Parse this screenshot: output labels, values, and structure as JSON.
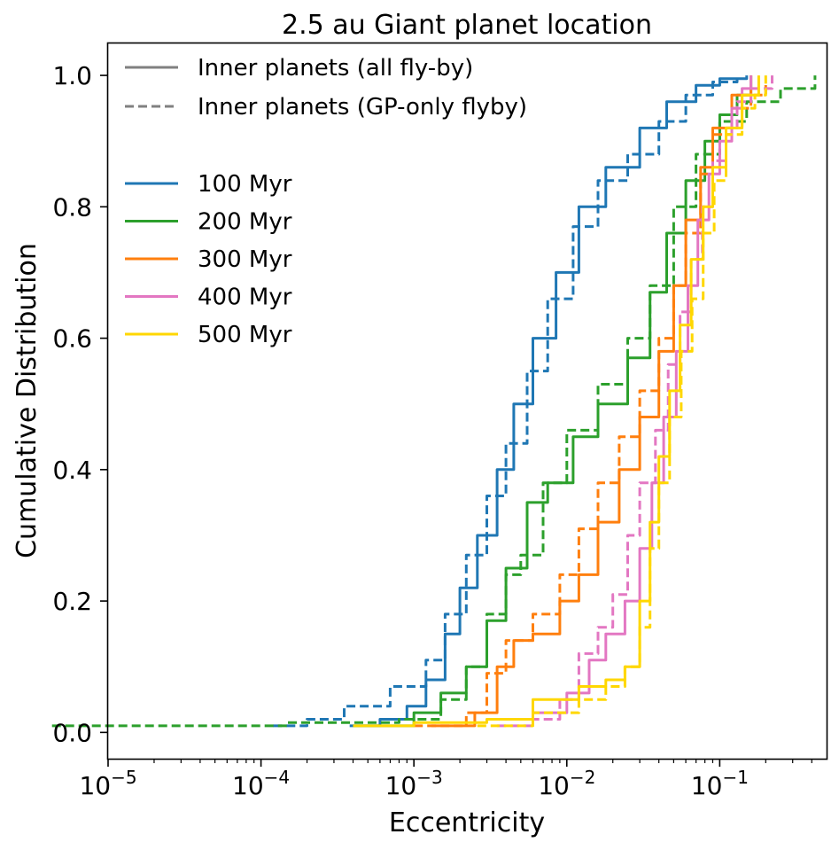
{
  "chart_data": {
    "type": "line",
    "title": "2.5 au Giant planet location",
    "xlabel": "Eccentricity",
    "ylabel": "Cumulative Distribution",
    "xscale": "log",
    "xlim": [
      1e-05,
      0.5
    ],
    "ylim": [
      -0.04,
      1.05
    ],
    "xticks": [
      {
        "value": 1e-05,
        "base": "10",
        "exp": "−5"
      },
      {
        "value": 0.0001,
        "base": "10",
        "exp": "−4"
      },
      {
        "value": 0.001,
        "base": "10",
        "exp": "−3"
      },
      {
        "value": 0.01,
        "base": "10",
        "exp": "−2"
      },
      {
        "value": 0.1,
        "base": "10",
        "exp": "−1"
      }
    ],
    "yticks": [
      {
        "value": 0.0,
        "label": "0.0"
      },
      {
        "value": 0.2,
        "label": "0.2"
      },
      {
        "value": 0.4,
        "label": "0.4"
      },
      {
        "value": 0.6,
        "label": "0.6"
      },
      {
        "value": 0.8,
        "label": "0.8"
      },
      {
        "value": 1.0,
        "label": "1.0"
      }
    ],
    "grid": false,
    "legend_placement": "top-left",
    "style_legend": [
      {
        "label": "Inner planets (all fly-by)",
        "linestyle": "solid",
        "color": "#808080"
      },
      {
        "label": "Inner planets (GP-only flyby)",
        "linestyle": "dashed",
        "color": "#808080"
      }
    ],
    "series": [
      {
        "name": "100 Myr",
        "color": "#1f77b4",
        "solid": [
          [
            0.00038,
            0.01
          ],
          [
            0.0006,
            0.02
          ],
          [
            0.0009,
            0.04
          ],
          [
            0.0012,
            0.08
          ],
          [
            0.0016,
            0.15
          ],
          [
            0.002,
            0.22
          ],
          [
            0.0026,
            0.3
          ],
          [
            0.0035,
            0.4
          ],
          [
            0.0045,
            0.5
          ],
          [
            0.006,
            0.6
          ],
          [
            0.0085,
            0.7
          ],
          [
            0.012,
            0.8
          ],
          [
            0.018,
            0.86
          ],
          [
            0.03,
            0.92
          ],
          [
            0.045,
            0.96
          ],
          [
            0.07,
            0.985
          ],
          [
            0.1,
            0.995
          ],
          [
            0.15,
            1.0
          ]
        ],
        "dashed": [
          [
            0.00012,
            0.01
          ],
          [
            0.0002,
            0.02
          ],
          [
            0.00035,
            0.04
          ],
          [
            0.0007,
            0.07
          ],
          [
            0.0012,
            0.11
          ],
          [
            0.0016,
            0.18
          ],
          [
            0.0022,
            0.27
          ],
          [
            0.003,
            0.36
          ],
          [
            0.004,
            0.44
          ],
          [
            0.0055,
            0.55
          ],
          [
            0.0075,
            0.66
          ],
          [
            0.011,
            0.77
          ],
          [
            0.016,
            0.84
          ],
          [
            0.025,
            0.88
          ],
          [
            0.04,
            0.93
          ],
          [
            0.06,
            0.97
          ],
          [
            0.09,
            0.99
          ],
          [
            0.13,
            1.0
          ]
        ]
      },
      {
        "name": "200 Myr",
        "color": "#2ca02c",
        "solid": [
          [
            0.0004,
            0.01
          ],
          [
            0.001,
            0.03
          ],
          [
            0.0015,
            0.06
          ],
          [
            0.0022,
            0.1
          ],
          [
            0.003,
            0.17
          ],
          [
            0.004,
            0.25
          ],
          [
            0.0055,
            0.35
          ],
          [
            0.0075,
            0.38
          ],
          [
            0.011,
            0.45
          ],
          [
            0.016,
            0.5
          ],
          [
            0.025,
            0.57
          ],
          [
            0.035,
            0.67
          ],
          [
            0.045,
            0.76
          ],
          [
            0.06,
            0.84
          ],
          [
            0.08,
            0.9
          ],
          [
            0.1,
            0.94
          ],
          [
            0.13,
            0.97
          ],
          [
            0.16,
            1.0
          ]
        ],
        "dashed": [
          [
            4.3e-06,
            0.01
          ],
          [
            0.00015,
            0.015
          ],
          [
            0.0008,
            0.02
          ],
          [
            0.0015,
            0.05
          ],
          [
            0.0022,
            0.1
          ],
          [
            0.003,
            0.18
          ],
          [
            0.004,
            0.24
          ],
          [
            0.005,
            0.27
          ],
          [
            0.007,
            0.38
          ],
          [
            0.01,
            0.46
          ],
          [
            0.016,
            0.53
          ],
          [
            0.025,
            0.6
          ],
          [
            0.035,
            0.68
          ],
          [
            0.05,
            0.8
          ],
          [
            0.07,
            0.88
          ],
          [
            0.1,
            0.93
          ],
          [
            0.15,
            0.96
          ],
          [
            0.25,
            0.98
          ],
          [
            0.42,
            1.0
          ]
        ]
      },
      {
        "name": "300 Myr",
        "color": "#ff7f0e",
        "solid": [
          [
            0.0013,
            0.01
          ],
          [
            0.0025,
            0.03
          ],
          [
            0.0035,
            0.1
          ],
          [
            0.0045,
            0.14
          ],
          [
            0.006,
            0.15
          ],
          [
            0.009,
            0.2
          ],
          [
            0.012,
            0.24
          ],
          [
            0.016,
            0.32
          ],
          [
            0.022,
            0.4
          ],
          [
            0.03,
            0.48
          ],
          [
            0.04,
            0.58
          ],
          [
            0.05,
            0.68
          ],
          [
            0.06,
            0.78
          ],
          [
            0.075,
            0.86
          ],
          [
            0.09,
            0.92
          ],
          [
            0.12,
            0.97
          ],
          [
            0.16,
            1.0
          ]
        ],
        "dashed": [
          [
            0.001,
            0.01
          ],
          [
            0.0022,
            0.03
          ],
          [
            0.003,
            0.09
          ],
          [
            0.004,
            0.14
          ],
          [
            0.006,
            0.18
          ],
          [
            0.009,
            0.24
          ],
          [
            0.012,
            0.31
          ],
          [
            0.016,
            0.38
          ],
          [
            0.022,
            0.45
          ],
          [
            0.03,
            0.52
          ],
          [
            0.04,
            0.6
          ],
          [
            0.05,
            0.68
          ],
          [
            0.06,
            0.76
          ],
          [
            0.075,
            0.85
          ],
          [
            0.09,
            0.91
          ],
          [
            0.12,
            0.95
          ],
          [
            0.16,
            0.97
          ],
          [
            0.2,
            0.99
          ]
        ]
      },
      {
        "name": "400 Myr",
        "color": "#e377c2",
        "solid": [
          [
            0.003,
            0.02
          ],
          [
            0.006,
            0.03
          ],
          [
            0.01,
            0.06
          ],
          [
            0.014,
            0.11
          ],
          [
            0.018,
            0.15
          ],
          [
            0.024,
            0.2
          ],
          [
            0.03,
            0.28
          ],
          [
            0.036,
            0.38
          ],
          [
            0.043,
            0.48
          ],
          [
            0.052,
            0.58
          ],
          [
            0.062,
            0.68
          ],
          [
            0.072,
            0.78
          ],
          [
            0.085,
            0.85
          ],
          [
            0.1,
            0.9
          ],
          [
            0.12,
            0.95
          ],
          [
            0.14,
            0.98
          ],
          [
            0.16,
            1.0
          ]
        ],
        "dashed": [
          [
            0.0035,
            0.01
          ],
          [
            0.006,
            0.02
          ],
          [
            0.009,
            0.05
          ],
          [
            0.012,
            0.12
          ],
          [
            0.016,
            0.16
          ],
          [
            0.02,
            0.21
          ],
          [
            0.025,
            0.3
          ],
          [
            0.03,
            0.38
          ],
          [
            0.038,
            0.46
          ],
          [
            0.046,
            0.56
          ],
          [
            0.055,
            0.64
          ],
          [
            0.065,
            0.72
          ],
          [
            0.077,
            0.8
          ],
          [
            0.09,
            0.87
          ],
          [
            0.11,
            0.92
          ],
          [
            0.13,
            0.96
          ],
          [
            0.16,
            0.98
          ],
          [
            0.22,
            1.0
          ]
        ]
      },
      {
        "name": "500 Myr",
        "color": "#ffd700",
        "solid": [
          [
            0.0004,
            0.01
          ],
          [
            0.001,
            0.015
          ],
          [
            0.003,
            0.02
          ],
          [
            0.006,
            0.05
          ],
          [
            0.012,
            0.07
          ],
          [
            0.018,
            0.08
          ],
          [
            0.024,
            0.1
          ],
          [
            0.03,
            0.2
          ],
          [
            0.035,
            0.32
          ],
          [
            0.04,
            0.42
          ],
          [
            0.047,
            0.52
          ],
          [
            0.055,
            0.62
          ],
          [
            0.065,
            0.72
          ],
          [
            0.078,
            0.8
          ],
          [
            0.09,
            0.86
          ],
          [
            0.11,
            0.92
          ],
          [
            0.14,
            0.97
          ],
          [
            0.18,
            1.0
          ]
        ],
        "dashed": [
          [
            0.0026,
            0.01
          ],
          [
            0.006,
            0.03
          ],
          [
            0.012,
            0.05
          ],
          [
            0.018,
            0.07
          ],
          [
            0.024,
            0.1
          ],
          [
            0.03,
            0.16
          ],
          [
            0.035,
            0.28
          ],
          [
            0.04,
            0.38
          ],
          [
            0.047,
            0.48
          ],
          [
            0.056,
            0.58
          ],
          [
            0.066,
            0.66
          ],
          [
            0.078,
            0.76
          ],
          [
            0.092,
            0.84
          ],
          [
            0.11,
            0.91
          ],
          [
            0.14,
            0.95
          ],
          [
            0.17,
            0.97
          ],
          [
            0.2,
            1.0
          ]
        ]
      }
    ]
  }
}
